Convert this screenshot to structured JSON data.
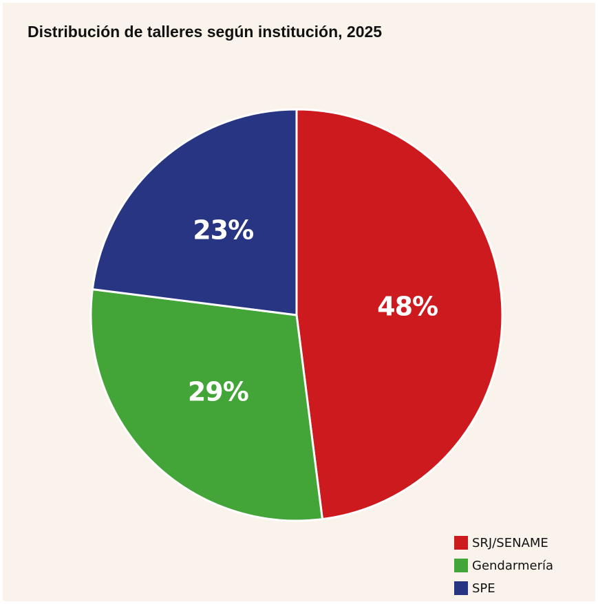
{
  "chart_data": {
    "type": "pie",
    "title": "Distribución de talleres según institución, 2025",
    "categories": [
      "SRJ/SENAME",
      "Gendarmería",
      "SPE"
    ],
    "values": [
      48,
      29,
      23
    ],
    "value_labels": [
      "48%",
      "29%",
      "23%"
    ],
    "colors": [
      "#cc1a1e",
      "#43a538",
      "#283583"
    ],
    "legend": "bottom-right"
  }
}
